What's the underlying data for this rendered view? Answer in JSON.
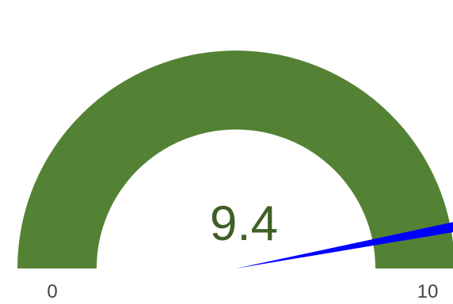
{
  "chart_data": {
    "type": "gauge",
    "value": 9.4,
    "value_label": "9.4",
    "min": 0,
    "max": 10,
    "min_label": "0",
    "max_label": "10",
    "band_color": "#548235",
    "needle_color": "#0000ff",
    "value_text_color": "#3f5f26"
  }
}
